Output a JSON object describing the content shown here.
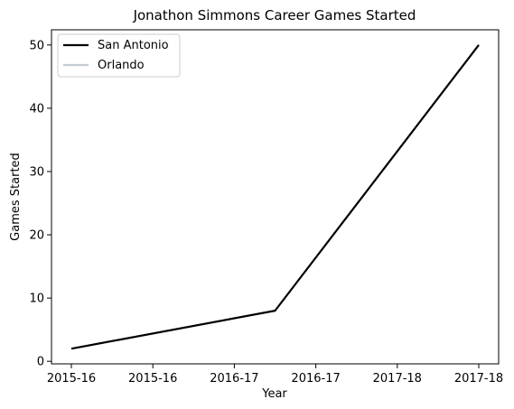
{
  "chart_data": {
    "type": "line",
    "title": "Jonathon Simmons Career Games Started",
    "xlabel": "Year",
    "ylabel": "Games Started",
    "x_tick_labels": [
      "2015-16",
      "2015-16",
      "2016-17",
      "2016-17",
      "2017-18",
      "2017-18"
    ],
    "y_ticks": [
      0,
      10,
      20,
      30,
      40,
      50
    ],
    "ylim": [
      -0.4,
      52.4
    ],
    "grid": false,
    "legend_position": "top-left",
    "series": [
      {
        "name": "San Antonio",
        "color": "#000000",
        "x": [
          "2015-16",
          "2016-17",
          "2017-18"
        ],
        "points": [
          {
            "x_index": 0,
            "y": 2
          },
          {
            "x_index": 2.5,
            "y": 8
          },
          {
            "x_index": 5,
            "y": 50
          }
        ]
      },
      {
        "name": "Orlando",
        "color": "#c3cbd3",
        "points": []
      }
    ]
  }
}
